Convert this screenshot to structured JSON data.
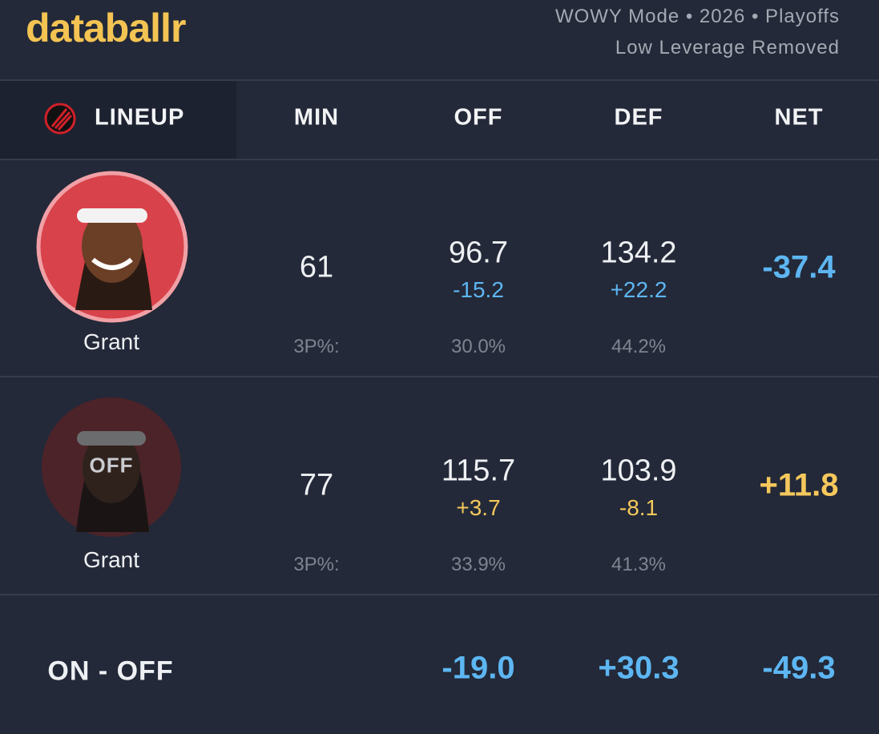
{
  "header": {
    "logo": "databallr",
    "mode": "WOWY Mode • 2026 • Playoffs",
    "filter": "Low Leverage Removed"
  },
  "table": {
    "columns": [
      "LINEUP",
      "MIN",
      "OFF",
      "DEF",
      "NET"
    ],
    "rows": [
      {
        "player": "Grant",
        "status": null,
        "min": "61",
        "off": "96.7",
        "off_diff": "-15.2",
        "def": "134.2",
        "def_diff": "+22.2",
        "net": "-37.4",
        "tp_label": "3P%:",
        "off_3p": "30.0%",
        "def_3p": "44.2%"
      },
      {
        "player": "Grant",
        "status": "OFF",
        "min": "77",
        "off": "115.7",
        "off_diff": "+3.7",
        "def": "103.9",
        "def_diff": "-8.1",
        "net": "+11.8",
        "tp_label": "3P%:",
        "off_3p": "33.9%",
        "def_3p": "41.3%"
      }
    ],
    "footer": {
      "label": "ON - OFF",
      "off": "-19.0",
      "def": "+30.3",
      "net": "-49.3"
    }
  }
}
